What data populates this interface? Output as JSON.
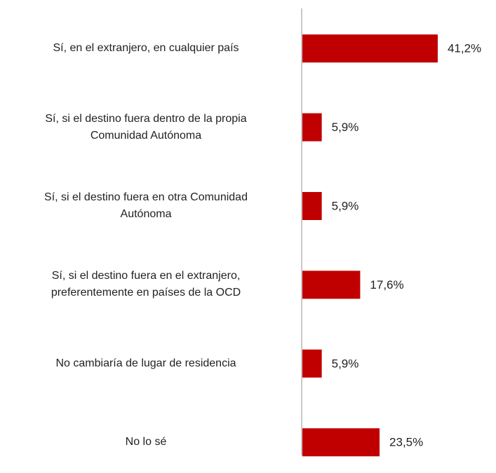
{
  "chart_data": {
    "type": "hbar",
    "categories": [
      "Sí, en el extranjero, en cualquier país",
      "Sí, si el destino fuera dentro de la propia\nComunidad Autónoma",
      "Sí, si el destino fuera en otra Comunidad\nAutónoma",
      "Sí, si el destino fuera en el extranjero,\npreferentemente en países de la OCD",
      "No cambiaría de lugar de residencia",
      "No lo sé"
    ],
    "values": [
      41.2,
      5.9,
      5.9,
      17.6,
      5.9,
      23.5
    ],
    "value_labels": [
      "41,2%",
      "5,9%",
      "5,9%",
      "17,6%",
      "5,9%",
      "23,5%"
    ],
    "color": "#c00000",
    "xlim": [
      0,
      60
    ]
  }
}
